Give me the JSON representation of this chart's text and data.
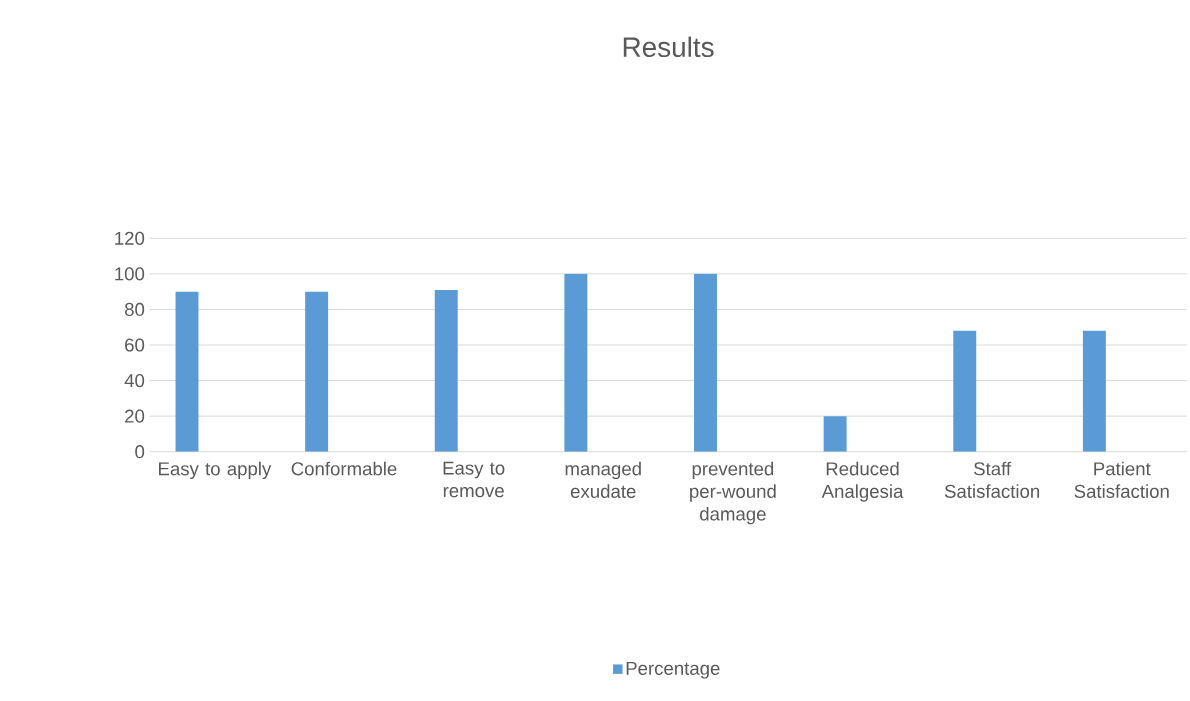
{
  "chart_data": {
    "type": "bar",
    "title": "Results",
    "categories": [
      "Easy to apply",
      "Conformable",
      "Easy to remove",
      "managed exudate",
      "prevented per-wound damage",
      "Reduced Analgesia",
      "Staff Satisfaction",
      "Patient Satisfaction"
    ],
    "series": [
      {
        "name": "Percentage",
        "color": "#5b9bd5",
        "values": [
          90,
          90,
          91,
          100,
          100,
          20,
          68,
          68
        ]
      }
    ],
    "ylim": [
      0,
      120
    ],
    "yticks": [
      0,
      20,
      40,
      60,
      80,
      100,
      120
    ],
    "grid": "y",
    "legend": "bottom"
  }
}
